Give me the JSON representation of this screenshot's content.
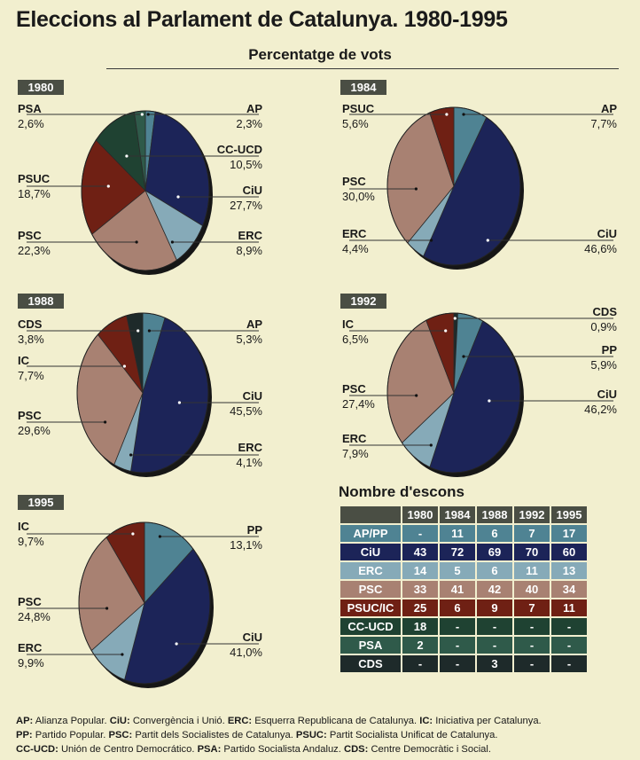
{
  "title": "Eleccions al Parlament de Catalunya. 1980-1995",
  "subtitle": "Percentatge de vots",
  "colors": {
    "AP": "#4f8393",
    "PP": "#4f8393",
    "CiU": "#1c2458",
    "ERC": "#86aab8",
    "PSC": "#a88172",
    "PSUC": "#6f2014",
    "IC": "#6f2014",
    "CC-UCD": "#1f4232",
    "PSA": "#2f5a4a",
    "CDS": "#1e2a2a",
    "year_box": "#4a4e44",
    "background": "#f2efcf"
  },
  "chart_data": [
    {
      "type": "pie",
      "year": "1980",
      "slices": [
        {
          "name": "AP",
          "value": 2.3,
          "label": "2,3%"
        },
        {
          "name": "CiU",
          "value": 27.7,
          "label": "27,7%"
        },
        {
          "name": "ERC",
          "value": 8.9,
          "label": "8,9%"
        },
        {
          "name": "PSC",
          "value": 22.3,
          "label": "22,3%"
        },
        {
          "name": "PSUC",
          "value": 18.7,
          "label": "18,7%"
        },
        {
          "name": "CC-UCD",
          "value": 10.5,
          "label": "10,5%"
        },
        {
          "name": "PSA",
          "value": 2.6,
          "label": "2,6%"
        }
      ]
    },
    {
      "type": "pie",
      "year": "1984",
      "slices": [
        {
          "name": "AP",
          "value": 7.7,
          "label": "7,7%"
        },
        {
          "name": "CiU",
          "value": 46.6,
          "label": "46,6%"
        },
        {
          "name": "ERC",
          "value": 4.4,
          "label": "4,4%"
        },
        {
          "name": "PSC",
          "value": 30.0,
          "label": "30,0%"
        },
        {
          "name": "PSUC",
          "value": 5.6,
          "label": "5,6%"
        }
      ]
    },
    {
      "type": "pie",
      "year": "1988",
      "slices": [
        {
          "name": "AP",
          "value": 5.3,
          "label": "5,3%"
        },
        {
          "name": "CiU",
          "value": 45.5,
          "label": "45,5%"
        },
        {
          "name": "ERC",
          "value": 4.1,
          "label": "4,1%"
        },
        {
          "name": "PSC",
          "value": 29.6,
          "label": "29,6%"
        },
        {
          "name": "IC",
          "value": 7.7,
          "label": "7,7%"
        },
        {
          "name": "CDS",
          "value": 3.8,
          "label": "3,8%"
        }
      ]
    },
    {
      "type": "pie",
      "year": "1992",
      "slices": [
        {
          "name": "CDS",
          "value": 0.9,
          "label": "0,9%"
        },
        {
          "name": "PP",
          "value": 5.9,
          "label": "5,9%"
        },
        {
          "name": "CiU",
          "value": 46.2,
          "label": "46,2%"
        },
        {
          "name": "ERC",
          "value": 7.9,
          "label": "7,9%"
        },
        {
          "name": "PSC",
          "value": 27.4,
          "label": "27,4%"
        },
        {
          "name": "IC",
          "value": 6.5,
          "label": "6,5%"
        }
      ]
    },
    {
      "type": "pie",
      "year": "1995",
      "slices": [
        {
          "name": "PP",
          "value": 13.1,
          "label": "13,1%"
        },
        {
          "name": "CiU",
          "value": 41.0,
          "label": "41,0%"
        },
        {
          "name": "ERC",
          "value": 9.9,
          "label": "9,9%"
        },
        {
          "name": "PSC",
          "value": 24.8,
          "label": "24,8%"
        },
        {
          "name": "IC",
          "value": 9.7,
          "label": "9,7%"
        }
      ]
    },
    {
      "type": "table",
      "title": "Nombre d'escons",
      "columns": [
        "1980",
        "1984",
        "1988",
        "1992",
        "1995"
      ],
      "rows": [
        {
          "party": "AP/PP",
          "color": "#4f8393",
          "values": [
            "-",
            "11",
            "6",
            "7",
            "17"
          ]
        },
        {
          "party": "CiU",
          "color": "#1c2458",
          "values": [
            "43",
            "72",
            "69",
            "70",
            "60"
          ]
        },
        {
          "party": "ERC",
          "color": "#86aab8",
          "values": [
            "14",
            "5",
            "6",
            "11",
            "13"
          ]
        },
        {
          "party": "PSC",
          "color": "#a88172",
          "values": [
            "33",
            "41",
            "42",
            "40",
            "34"
          ]
        },
        {
          "party": "PSUC/IC",
          "color": "#6f2014",
          "values": [
            "25",
            "6",
            "9",
            "7",
            "11"
          ]
        },
        {
          "party": "CC-UCD",
          "color": "#1f4232",
          "values": [
            "18",
            "-",
            "-",
            "-",
            "-"
          ]
        },
        {
          "party": "PSA",
          "color": "#2f5a4a",
          "values": [
            "2",
            "-",
            "-",
            "-",
            "-"
          ]
        },
        {
          "party": "CDS",
          "color": "#1e2a2a",
          "values": [
            "-",
            "-",
            "3",
            "-",
            "-"
          ]
        }
      ]
    }
  ],
  "legend": [
    [
      {
        "abbr": "AP:",
        "text": " Alianza Popular. "
      },
      {
        "abbr": "CiU:",
        "text": " Convergència i Unió. "
      },
      {
        "abbr": "ERC:",
        "text": " Esquerra Republicana de Catalunya. "
      },
      {
        "abbr": "IC:",
        "text": " Iniciativa per Catalunya."
      }
    ],
    [
      {
        "abbr": "PP:",
        "text": " Partido Popular. "
      },
      {
        "abbr": "PSC:",
        "text": " Partit dels Socialistes de Catalunya.  "
      },
      {
        "abbr": "PSUC:",
        "text": " Partit Socialista Unificat de Catalunya."
      }
    ],
    [
      {
        "abbr": "CC-UCD:",
        "text": " Unión de Centro Democrático.  "
      },
      {
        "abbr": "PSA:",
        "text": " Partido Socialista Andaluz.  "
      },
      {
        "abbr": "CDS:",
        "text": " Centre Democràtic i Social."
      }
    ]
  ]
}
